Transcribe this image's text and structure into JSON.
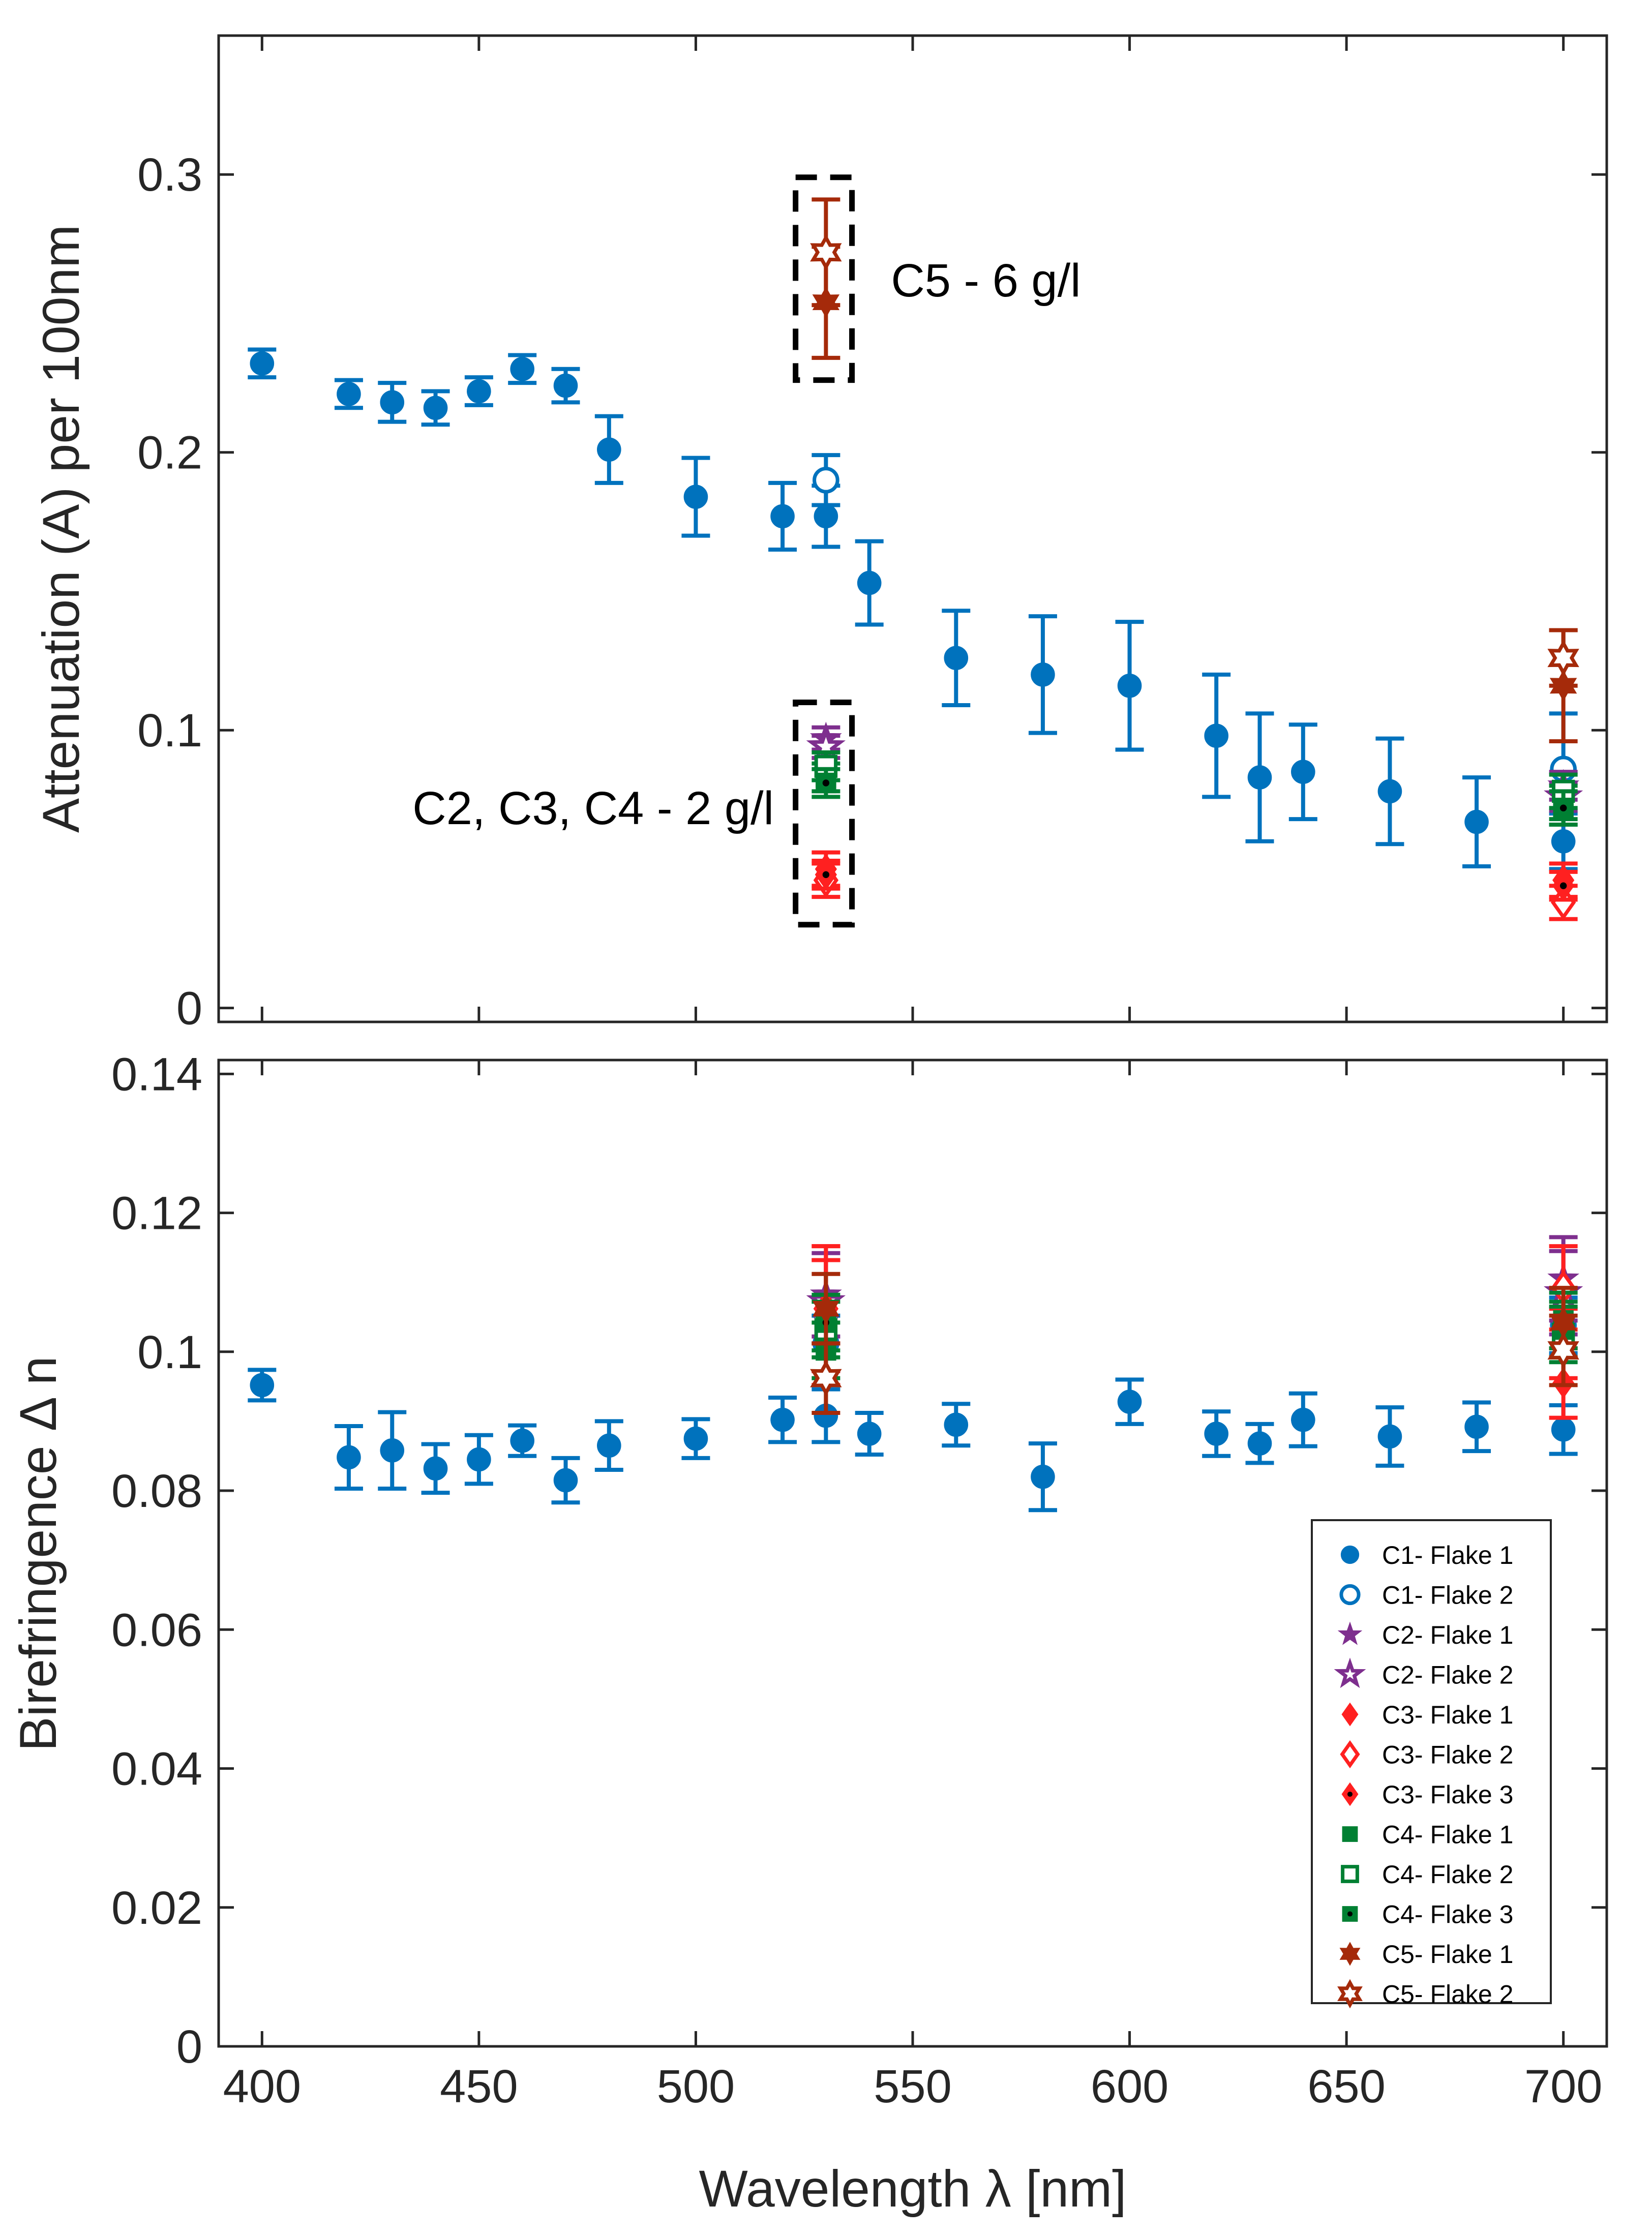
{
  "chart_data": [
    {
      "type": "scatter",
      "panel": "top",
      "ylabel": "Attenuation (A) per 100nm",
      "xlim": [
        390,
        710
      ],
      "ylim": [
        -0.005,
        0.35
      ],
      "yticks": [
        0,
        0.1,
        0.2,
        0.3
      ],
      "ytick_labels": [
        "0",
        "0.1",
        "0.2",
        "0.3"
      ],
      "grid": false,
      "annotations": [
        {
          "text": "C5 - 6 g/l",
          "x": 545,
          "y": 0.262
        },
        {
          "text": "C2, C3, C4 - 2 g/l",
          "x": 518,
          "y": 0.072
        }
      ],
      "boxes": [
        {
          "x0": 523,
          "x1": 536,
          "y0": 0.226,
          "y1": 0.299
        },
        {
          "x0": 523,
          "x1": 536,
          "y0": 0.03,
          "y1": 0.11
        }
      ],
      "series": [
        {
          "name": "C1- Flake 1",
          "color": "#0072BD",
          "marker": "circle-filled",
          "x": [
            400,
            420,
            430,
            440,
            450,
            460,
            470,
            480,
            500,
            520,
            530,
            540,
            560,
            580,
            600,
            620,
            630,
            640,
            660,
            680,
            700
          ],
          "y": [
            0.232,
            0.221,
            0.218,
            0.216,
            0.222,
            0.23,
            0.224,
            0.201,
            0.184,
            0.177,
            0.177,
            0.153,
            0.126,
            0.12,
            0.116,
            0.098,
            0.083,
            0.085,
            0.078,
            0.067,
            0.06
          ],
          "err": [
            0.005,
            0.005,
            0.007,
            0.006,
            0.005,
            0.005,
            0.006,
            0.012,
            0.014,
            0.012,
            0.011,
            0.015,
            0.017,
            0.021,
            0.023,
            0.022,
            0.023,
            0.017,
            0.019,
            0.016,
            0.01
          ]
        },
        {
          "name": "C1- Flake 2",
          "color": "#0072BD",
          "marker": "circle-open",
          "x": [
            530,
            700
          ],
          "y": [
            0.19,
            0.086
          ],
          "err": [
            0.009,
            0.02
          ]
        },
        {
          "name": "C2- Flake 1",
          "color": "#7E2F8E",
          "marker": "star-filled",
          "x": [
            530,
            700
          ],
          "y": [
            0.097,
            0.08
          ],
          "err": [
            0.004,
            0.005
          ]
        },
        {
          "name": "C2- Flake 2",
          "color": "#7E2F8E",
          "marker": "star-open",
          "x": [
            530,
            700
          ],
          "y": [
            0.094,
            0.076
          ],
          "err": [
            0.004,
            0.005
          ]
        },
        {
          "name": "C3- Flake 1",
          "color": "#FF2020",
          "marker": "diamond-filled",
          "x": [
            530,
            700
          ],
          "y": [
            0.05,
            0.046
          ],
          "err": [
            0.006,
            0.006
          ]
        },
        {
          "name": "C3- Flake 2",
          "color": "#FF2020",
          "marker": "diamond-open",
          "x": [
            530,
            700
          ],
          "y": [
            0.046,
            0.038
          ],
          "err": [
            0.006,
            0.006
          ]
        },
        {
          "name": "C3- Flake 3",
          "color": "#FF2020",
          "marker": "diamond-dot",
          "x": [
            530,
            700
          ],
          "y": [
            0.048,
            0.044
          ],
          "err": [
            0.005,
            0.005
          ]
        },
        {
          "name": "C4- Flake 1",
          "color": "#008033",
          "marker": "square-filled",
          "x": [
            530,
            700
          ],
          "y": [
            0.083,
            0.074
          ],
          "err": [
            0.005,
            0.006
          ]
        },
        {
          "name": "C4- Flake 2",
          "color": "#008033",
          "marker": "square-open",
          "x": [
            530,
            700
          ],
          "y": [
            0.087,
            0.078
          ],
          "err": [
            0.005,
            0.006
          ]
        },
        {
          "name": "C4- Flake 3",
          "color": "#008033",
          "marker": "square-dot",
          "x": [
            530,
            700
          ],
          "y": [
            0.081,
            0.072
          ],
          "err": [
            0.005,
            0.006
          ]
        },
        {
          "name": "C5- Flake 1",
          "color": "#A52A0A",
          "marker": "hexagram-filled",
          "x": [
            530,
            700
          ],
          "y": [
            0.254,
            0.116
          ],
          "err": [
            0.02,
            0.02
          ]
        },
        {
          "name": "C5- Flake 2",
          "color": "#A52A0A",
          "marker": "hexagram-open",
          "x": [
            530,
            700
          ],
          "y": [
            0.272,
            0.126
          ],
          "err": [
            0.019,
            0.01
          ]
        }
      ]
    },
    {
      "type": "scatter",
      "panel": "bottom",
      "xlabel": "Wavelength λ [nm]",
      "ylabel": "Birefringence Δ n",
      "xlim": [
        390,
        710
      ],
      "ylim": [
        0,
        0.142
      ],
      "xticks": [
        400,
        450,
        500,
        550,
        600,
        650,
        700
      ],
      "xtick_labels": [
        "400",
        "450",
        "500",
        "550",
        "600",
        "650",
        "700"
      ],
      "yticks": [
        0,
        0.02,
        0.04,
        0.06,
        0.08,
        0.1,
        0.12,
        0.14
      ],
      "ytick_labels": [
        "0",
        "0.02",
        "0.04",
        "0.06",
        "0.08",
        "0.1",
        "0.12",
        "0.14"
      ],
      "grid": false,
      "legend": "bottom-right",
      "series": [
        {
          "name": "C1- Flake 1",
          "color": "#0072BD",
          "marker": "circle-filled",
          "x": [
            400,
            420,
            430,
            440,
            450,
            460,
            470,
            480,
            500,
            520,
            530,
            540,
            560,
            580,
            600,
            620,
            630,
            640,
            660,
            680,
            700
          ],
          "y": [
            0.0952,
            0.0848,
            0.0858,
            0.0832,
            0.0845,
            0.0872,
            0.0815,
            0.0865,
            0.0875,
            0.0902,
            0.0908,
            0.0882,
            0.0895,
            0.082,
            0.0928,
            0.0882,
            0.0868,
            0.0902,
            0.0878,
            0.0892,
            0.0888
          ],
          "err": [
            0.0022,
            0.0045,
            0.0055,
            0.0035,
            0.0035,
            0.0022,
            0.0032,
            0.0035,
            0.0028,
            0.0032,
            0.0038,
            0.003,
            0.003,
            0.0048,
            0.0032,
            0.0032,
            0.0028,
            0.0038,
            0.0042,
            0.0035,
            0.0035
          ]
        },
        {
          "name": "C1- Flake 2",
          "color": "#0072BD",
          "marker": "circle-open",
          "x": [
            530,
            700
          ],
          "y": [
            0.1012,
            0.1038
          ],
          "err": [
            0.004,
            0.004
          ]
        },
        {
          "name": "C2- Flake 1",
          "color": "#7E2F8E",
          "marker": "star-filled",
          "x": [
            530,
            700
          ],
          "y": [
            0.1082,
            0.1105
          ],
          "err": [
            0.006,
            0.006
          ]
        },
        {
          "name": "C2- Flake 2",
          "color": "#7E2F8E",
          "marker": "star-open",
          "x": [
            530,
            700
          ],
          "y": [
            0.1072,
            0.1085
          ],
          "err": [
            0.006,
            0.006
          ]
        },
        {
          "name": "C3- Flake 1",
          "color": "#FF2020",
          "marker": "diamond-filled",
          "x": [
            530,
            700
          ],
          "y": [
            0.1052,
            0.0955
          ],
          "err": [
            0.01,
            0.005
          ]
        },
        {
          "name": "C3- Flake 2",
          "color": "#FF2020",
          "marker": "diamond-open",
          "x": [
            530,
            700
          ],
          "y": [
            0.1062,
            0.1092
          ],
          "err": [
            0.009,
            0.006
          ]
        },
        {
          "name": "C3- Flake 3",
          "color": "#FF2020",
          "marker": "diamond-dot",
          "x": [
            530,
            700
          ],
          "y": [
            0.1042,
            0.1012
          ],
          "err": [
            0.009,
            0.005
          ]
        },
        {
          "name": "C4- Flake 1",
          "color": "#008033",
          "marker": "square-filled",
          "x": [
            530,
            700
          ],
          "y": [
            0.1002,
            0.1045
          ],
          "err": [
            0.004,
            0.004
          ]
        },
        {
          "name": "C4- Flake 2",
          "color": "#008033",
          "marker": "square-open",
          "x": [
            530,
            700
          ],
          "y": [
            0.1032,
            0.1025
          ],
          "err": [
            0.004,
            0.004
          ]
        },
        {
          "name": "C4- Flake 3",
          "color": "#008033",
          "marker": "square-dot",
          "x": [
            530,
            700
          ],
          "y": [
            0.1042,
            0.1032
          ],
          "err": [
            0.004,
            0.004
          ]
        },
        {
          "name": "C5- Flake 1",
          "color": "#A52A0A",
          "marker": "hexagram-filled",
          "x": [
            530,
            700
          ],
          "y": [
            0.1062,
            0.1042
          ],
          "err": [
            0.005,
            0.005
          ]
        },
        {
          "name": "C5- Flake 2",
          "color": "#A52A0A",
          "marker": "hexagram-open",
          "x": [
            530,
            700
          ],
          "y": [
            0.0962,
            0.1002
          ],
          "err": [
            0.005,
            0.005
          ]
        }
      ]
    }
  ]
}
